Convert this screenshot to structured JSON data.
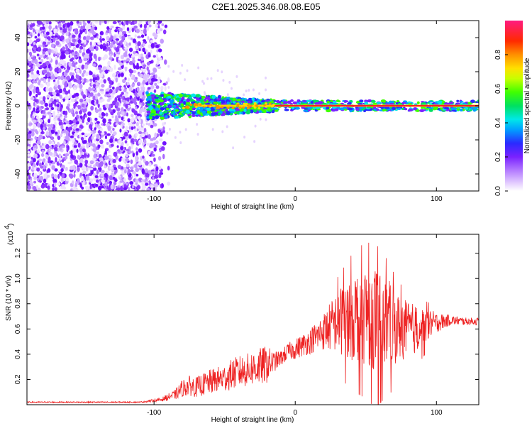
{
  "title": "C2E1.2025.346.08.08.E05",
  "chart_data": [
    {
      "type": "heatmap",
      "xlabel": "Height of straight line (km)",
      "ylabel": "Frequency (Hz)",
      "xlim": [
        -190,
        130
      ],
      "ylim": [
        -50,
        50
      ],
      "xticks": [
        -100,
        0,
        100
      ],
      "yticks": [
        -40,
        -20,
        0,
        20,
        40
      ],
      "colorbar": {
        "label": "Normalized spectral amplitude",
        "range": [
          0,
          1
        ],
        "ticks": [
          "0.0",
          "0.2",
          "0.4",
          "0.6",
          "0.8"
        ],
        "tick_values": [
          0,
          0.2,
          0.4,
          0.6,
          0.8
        ]
      },
      "description_regions": [
        {
          "x_range": [
            -190,
            -90
          ],
          "freq_range": [
            -50,
            50
          ],
          "amplitude": 0.2
        },
        {
          "x_range": [
            -105,
            -20
          ],
          "freq_range": [
            -8,
            8
          ],
          "amplitude": 0.45
        },
        {
          "x_range": [
            -20,
            130
          ],
          "freq_range": [
            -2,
            2
          ],
          "amplitude": 0.95
        }
      ],
      "colors": {
        "low": "#e3ccff",
        "mid": "#7b2bff",
        "band": "#00d8ff",
        "high": "#ff2020"
      }
    },
    {
      "type": "line",
      "xlabel": "Height of straight line (km)",
      "ylabel": "SNR (10 * v/v)",
      "y_multiplier": "(x10",
      "y_multiplier_exp": "4",
      "xlim": [
        -190,
        130
      ],
      "ylim": [
        0,
        1.35
      ],
      "xticks": [
        -100,
        0,
        100
      ],
      "yticks": [
        0.2,
        0.4,
        0.6,
        0.8,
        1.0,
        1.2
      ],
      "ytick_labels": [
        "0.2",
        "0.4",
        "0.6",
        "0.8",
        "1.0",
        "1.2"
      ],
      "series": [
        {
          "name": "SNR",
          "color": "#ee2222",
          "x": [
            -190,
            -150,
            -110,
            -95,
            -85,
            -80,
            -75,
            -70,
            -65,
            -60,
            -55,
            -50,
            -45,
            -40,
            -35,
            -30,
            -25,
            -20,
            -15,
            -10,
            -5,
            0,
            5,
            10,
            15,
            20,
            25,
            30,
            35,
            40,
            45,
            50,
            55,
            60,
            65,
            70,
            75,
            80,
            85,
            90,
            95,
            100,
            110,
            120,
            130
          ],
          "values": [
            0.02,
            0.02,
            0.02,
            0.04,
            0.08,
            0.13,
            0.15,
            0.14,
            0.16,
            0.18,
            0.2,
            0.21,
            0.24,
            0.26,
            0.27,
            0.29,
            0.3,
            0.32,
            0.34,
            0.37,
            0.42,
            0.44,
            0.47,
            0.5,
            0.54,
            0.58,
            0.62,
            0.66,
            0.68,
            0.7,
            0.72,
            0.72,
            0.7,
            0.68,
            0.66,
            0.62,
            0.6,
            0.6,
            0.6,
            0.62,
            0.64,
            0.65,
            0.67,
            0.66,
            0.66
          ],
          "spread": [
            0.005,
            0.005,
            0.005,
            0.015,
            0.04,
            0.07,
            0.08,
            0.08,
            0.09,
            0.1,
            0.1,
            0.11,
            0.12,
            0.13,
            0.13,
            0.14,
            0.15,
            0.15,
            0.08,
            0.06,
            0.07,
            0.08,
            0.09,
            0.1,
            0.12,
            0.15,
            0.2,
            0.25,
            0.3,
            0.35,
            0.38,
            0.4,
            0.42,
            0.4,
            0.35,
            0.3,
            0.25,
            0.22,
            0.2,
            0.15,
            0.12,
            0.08,
            0.04,
            0.03,
            0.03
          ]
        }
      ]
    }
  ]
}
